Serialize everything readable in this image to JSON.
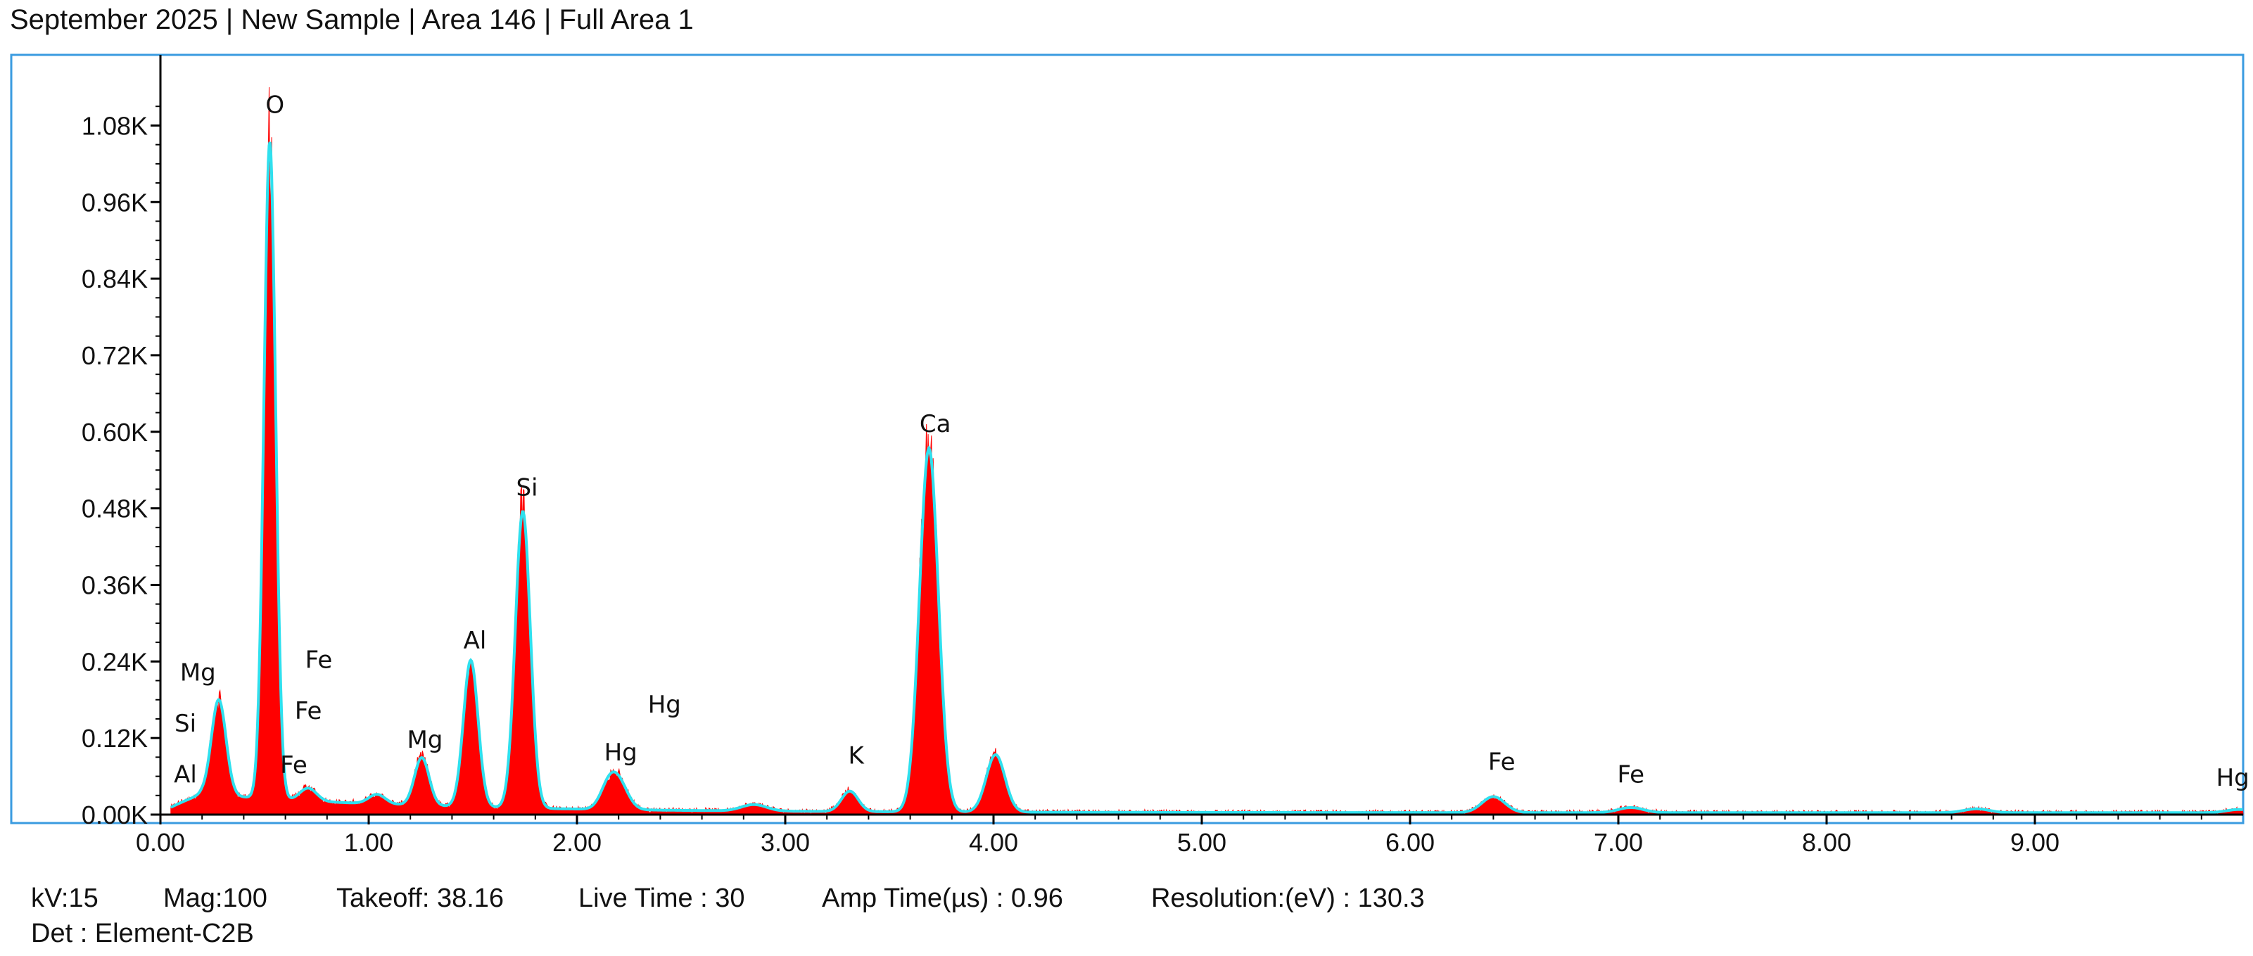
{
  "header": {
    "title": "September 2025 | New Sample | Area 146 | Full Area 1"
  },
  "footer": {
    "kv": "kV:15",
    "mag": "Mag:100",
    "takeoff": "Takeoff: 38.16",
    "live_time": "Live Time : 30",
    "amp_time": "Amp Time(µs) : 0.96",
    "resolution": "Resolution:(eV) : 130.3",
    "detector": "Det : Element-C2B"
  },
  "colors": {
    "spectrum_fill": "#ff0000",
    "fit_line": "#2fe0ee",
    "frame": "#3a9be0",
    "axis": "#000000"
  },
  "chart_data": {
    "type": "area",
    "xlim": [
      0,
      10
    ],
    "ylim": [
      0,
      1.14
    ],
    "y_unit": "K counts",
    "x_ticks": [
      0,
      1,
      2,
      3,
      4,
      5,
      6,
      7,
      8,
      9
    ],
    "x_tick_labels": [
      "0.00",
      "1.00",
      "2.00",
      "3.00",
      "4.00",
      "5.00",
      "6.00",
      "7.00",
      "8.00",
      "9.00"
    ],
    "y_ticks": [
      0,
      0.12,
      0.24,
      0.36,
      0.48,
      0.6,
      0.72,
      0.84,
      0.96,
      1.08
    ],
    "y_tick_labels": [
      "0.00K",
      "0.12K",
      "0.24K",
      "0.36K",
      "0.48K",
      "0.60K",
      "0.72K",
      "0.84K",
      "0.96K",
      "1.08K"
    ],
    "peaks": [
      {
        "x": 0.28,
        "h": 0.15,
        "w": 0.035
      },
      {
        "x": 0.525,
        "h": 1.03,
        "w": 0.028
      },
      {
        "x": 0.71,
        "h": 0.02,
        "w": 0.04
      },
      {
        "x": 1.04,
        "h": 0.015,
        "w": 0.04
      },
      {
        "x": 1.255,
        "h": 0.075,
        "w": 0.035
      },
      {
        "x": 1.49,
        "h": 0.23,
        "w": 0.035
      },
      {
        "x": 1.74,
        "h": 0.465,
        "w": 0.036
      },
      {
        "x": 2.15,
        "h": 0.03,
        "w": 0.04
      },
      {
        "x": 2.2,
        "h": 0.04,
        "w": 0.045
      },
      {
        "x": 2.85,
        "h": 0.01,
        "w": 0.06
      },
      {
        "x": 3.31,
        "h": 0.032,
        "w": 0.04
      },
      {
        "x": 3.69,
        "h": 0.57,
        "w": 0.045
      },
      {
        "x": 4.01,
        "h": 0.09,
        "w": 0.045
      },
      {
        "x": 6.4,
        "h": 0.025,
        "w": 0.055
      },
      {
        "x": 7.06,
        "h": 0.008,
        "w": 0.06
      },
      {
        "x": 8.72,
        "h": 0.006,
        "w": 0.06
      },
      {
        "x": 9.98,
        "h": 0.005,
        "w": 0.06
      }
    ],
    "background": {
      "base": 0.003,
      "amp": 0.035,
      "decay": 0.9
    },
    "element_labels": [
      {
        "text": "O",
        "x": 0.55,
        "y": 1.1
      },
      {
        "text": "Mg",
        "x": 0.18,
        "y": 0.21
      },
      {
        "text": "Si",
        "x": 0.12,
        "y": 0.13
      },
      {
        "text": "Al",
        "x": 0.12,
        "y": 0.05
      },
      {
        "text": "Fe",
        "x": 0.76,
        "y": 0.23
      },
      {
        "text": "Fe",
        "x": 0.71,
        "y": 0.15
      },
      {
        "text": "Fe",
        "x": 0.64,
        "y": 0.065
      },
      {
        "text": "Mg",
        "x": 1.27,
        "y": 0.105
      },
      {
        "text": "Al",
        "x": 1.51,
        "y": 0.26
      },
      {
        "text": "Si",
        "x": 1.76,
        "y": 0.5
      },
      {
        "text": "Hg",
        "x": 2.42,
        "y": 0.16
      },
      {
        "text": "Hg",
        "x": 2.21,
        "y": 0.085
      },
      {
        "text": "K",
        "x": 3.34,
        "y": 0.08
      },
      {
        "text": "Ca",
        "x": 3.72,
        "y": 0.6
      },
      {
        "text": "Fe",
        "x": 6.44,
        "y": 0.07
      },
      {
        "text": "Fe",
        "x": 7.06,
        "y": 0.05
      },
      {
        "text": "Hg",
        "x": 9.95,
        "y": 0.045
      }
    ]
  }
}
